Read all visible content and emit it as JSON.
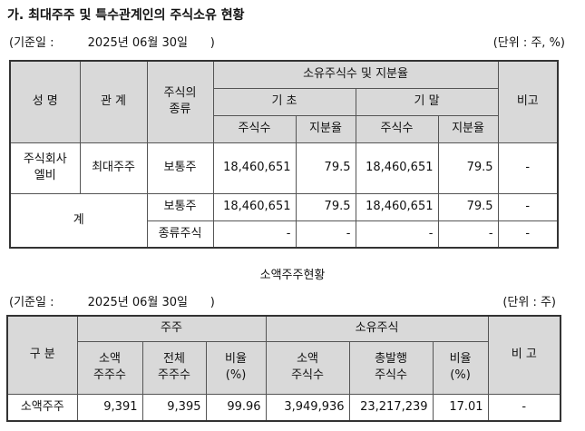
{
  "heading": "가. 최대주주 및 특수관계인의 주식소유 현황",
  "t1_meta": {
    "base_date": "(기준일 :         2025년 06월 30일      )",
    "unit": "(단위 : 주, %)"
  },
  "t1": {
    "h_name": "성 명",
    "h_relation": "관 계",
    "h_type_1": "주식의",
    "h_type_2": "종류",
    "h_holdings": "소유주식수 및 지분율",
    "h_begin": "기 초",
    "h_end": "기 말",
    "h_note": "비고",
    "h_shares": "주식수",
    "h_ratio": "지분율",
    "rows": [
      {
        "name_1": "주식회사",
        "name_2": "엘비",
        "relation": "최대주주",
        "type": "보통주",
        "b_shares": "18,460,651",
        "b_ratio": "79.5",
        "e_shares": "18,460,651",
        "e_ratio": "79.5",
        "note": "-"
      }
    ],
    "total_label": "계",
    "total_rows": [
      {
        "type": "보통주",
        "b_shares": "18,460,651",
        "b_ratio": "79.5",
        "e_shares": "18,460,651",
        "e_ratio": "79.5",
        "note": "-"
      },
      {
        "type": "종류주식",
        "b_shares": "-",
        "b_ratio": "-",
        "e_shares": "-",
        "e_ratio": "-",
        "note": "-"
      }
    ]
  },
  "t2_title": "소액주주현황",
  "t2_meta": {
    "base_date": "(기준일 :         2025년 06월 30일      )",
    "unit": "(단위 : 주)"
  },
  "t2": {
    "h_category": "구 분",
    "h_holders": "주주",
    "h_stock": "소유주식",
    "h_note": "비 고",
    "h_minor_holders_1": "소액",
    "h_minor_holders_2": "주주수",
    "h_total_holders_1": "전체",
    "h_total_holders_2": "주주수",
    "h_ratio_1": "비율",
    "h_ratio_2": "(%)",
    "h_minor_shares_1": "소액",
    "h_minor_shares_2": "주식수",
    "h_total_issued_1": "총발행",
    "h_total_issued_2": "주식수",
    "h_ratio2_1": "비율",
    "h_ratio2_2": "(%)",
    "row": {
      "category": "소액주주",
      "minor_holders": "9,391",
      "total_holders": "9,395",
      "holder_ratio": "99.96",
      "minor_shares": "3,949,936",
      "total_issued": "23,217,239",
      "share_ratio": "17.01",
      "note": "-"
    }
  }
}
